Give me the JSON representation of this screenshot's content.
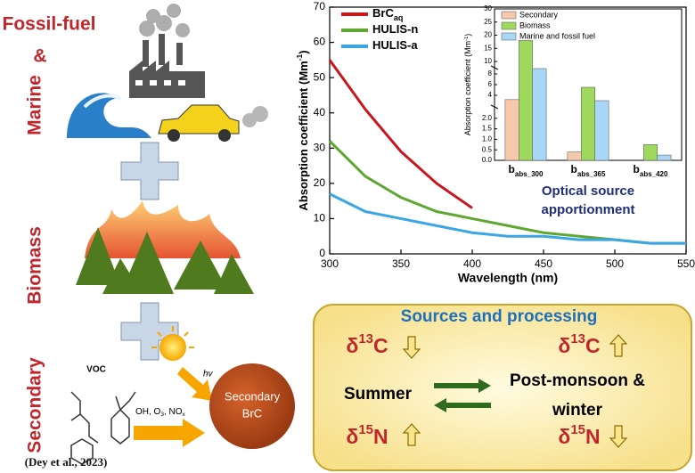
{
  "chart_data": [
    {
      "type": "line",
      "xlabel": "Wavelength (nm)",
      "ylabel": [
        "Absorption coefficient (Mm",
        "-1",
        ")"
      ],
      "x": [
        300,
        325,
        350,
        375,
        400,
        425,
        450,
        475,
        500,
        525,
        550
      ],
      "xlim": [
        300,
        550
      ],
      "xticks": [
        300,
        350,
        400,
        450,
        500,
        550
      ],
      "ylim": [
        0,
        70
      ],
      "yticks": [
        0,
        10,
        20,
        30,
        40,
        50,
        60,
        70
      ],
      "legend": "upper left",
      "series": [
        {
          "name": "BrC",
          "name_sub": "aq",
          "color": "#c8161d",
          "values": [
            55,
            41,
            29,
            20,
            13,
            null,
            null,
            null,
            null,
            null,
            null
          ]
        },
        {
          "name": "HULIS-n",
          "color": "#5ea832",
          "values": [
            32,
            22,
            16,
            12,
            10,
            8,
            6,
            5,
            4,
            3,
            3
          ]
        },
        {
          "name": "HULIS-a",
          "color": "#3ba6e6",
          "values": [
            17,
            12,
            10,
            8,
            6,
            5,
            5,
            4,
            4,
            3,
            3
          ]
        }
      ]
    },
    {
      "type": "bar",
      "ylabel": [
        "Absorption coefficient (Mm",
        "-1",
        ")"
      ],
      "categories": [
        {
          "main": "b",
          "sub": "abs_300"
        },
        {
          "main": "b",
          "sub": "abs_365"
        },
        {
          "main": "b",
          "sub": "abs_420"
        }
      ],
      "ysegments": [
        [
          0,
          2.5
        ],
        [
          2.5,
          9
        ],
        [
          9,
          30
        ]
      ],
      "yticks": [
        {
          "value": 0,
          "label": "0.0"
        },
        {
          "value": 0.5,
          "label": "0.5"
        },
        {
          "value": 1,
          "label": "1.0"
        },
        {
          "value": 1.5,
          "label": "1.5"
        },
        {
          "value": 2,
          "label": "2.0"
        },
        4,
        6,
        8,
        10,
        15,
        20,
        25,
        30
      ],
      "legend": "upper left",
      "series": [
        {
          "name": "Secondary",
          "color": "#f6c9ad",
          "values": [
            3.2,
            0.4,
            0
          ]
        },
        {
          "name": "Biomass",
          "color": "#9ed85c",
          "values": [
            18,
            5.5,
            0.75
          ]
        },
        {
          "name": "Marine and fossil fuel",
          "color": "#a9d7f7",
          "values": [
            9,
            3,
            0.25
          ]
        }
      ],
      "caption": "Optical source apportionment"
    }
  ],
  "sources": {
    "fossil": "Fossil-fuel",
    "amp": "&",
    "marine": "Marine",
    "biomass": "Biomass",
    "secondary": "Secondary",
    "citation": "(Dey et al., 2023)",
    "voc": "VOC",
    "hv": "hv",
    "oxidants": [
      [
        "OH, O",
        "3",
        ", NO",
        "x"
      ]
    ],
    "brc": [
      "Secondary",
      "BrC"
    ]
  },
  "processing": {
    "title": "Sources and processing",
    "summer": "Summer",
    "post": [
      "Post-monsoon &",
      "winter"
    ],
    "isotopes": [
      [
        "δ",
        "13",
        "C"
      ],
      [
        "δ",
        "15",
        "N"
      ],
      [
        "δ",
        "13",
        "C"
      ],
      [
        "δ",
        "15",
        "N"
      ]
    ]
  }
}
